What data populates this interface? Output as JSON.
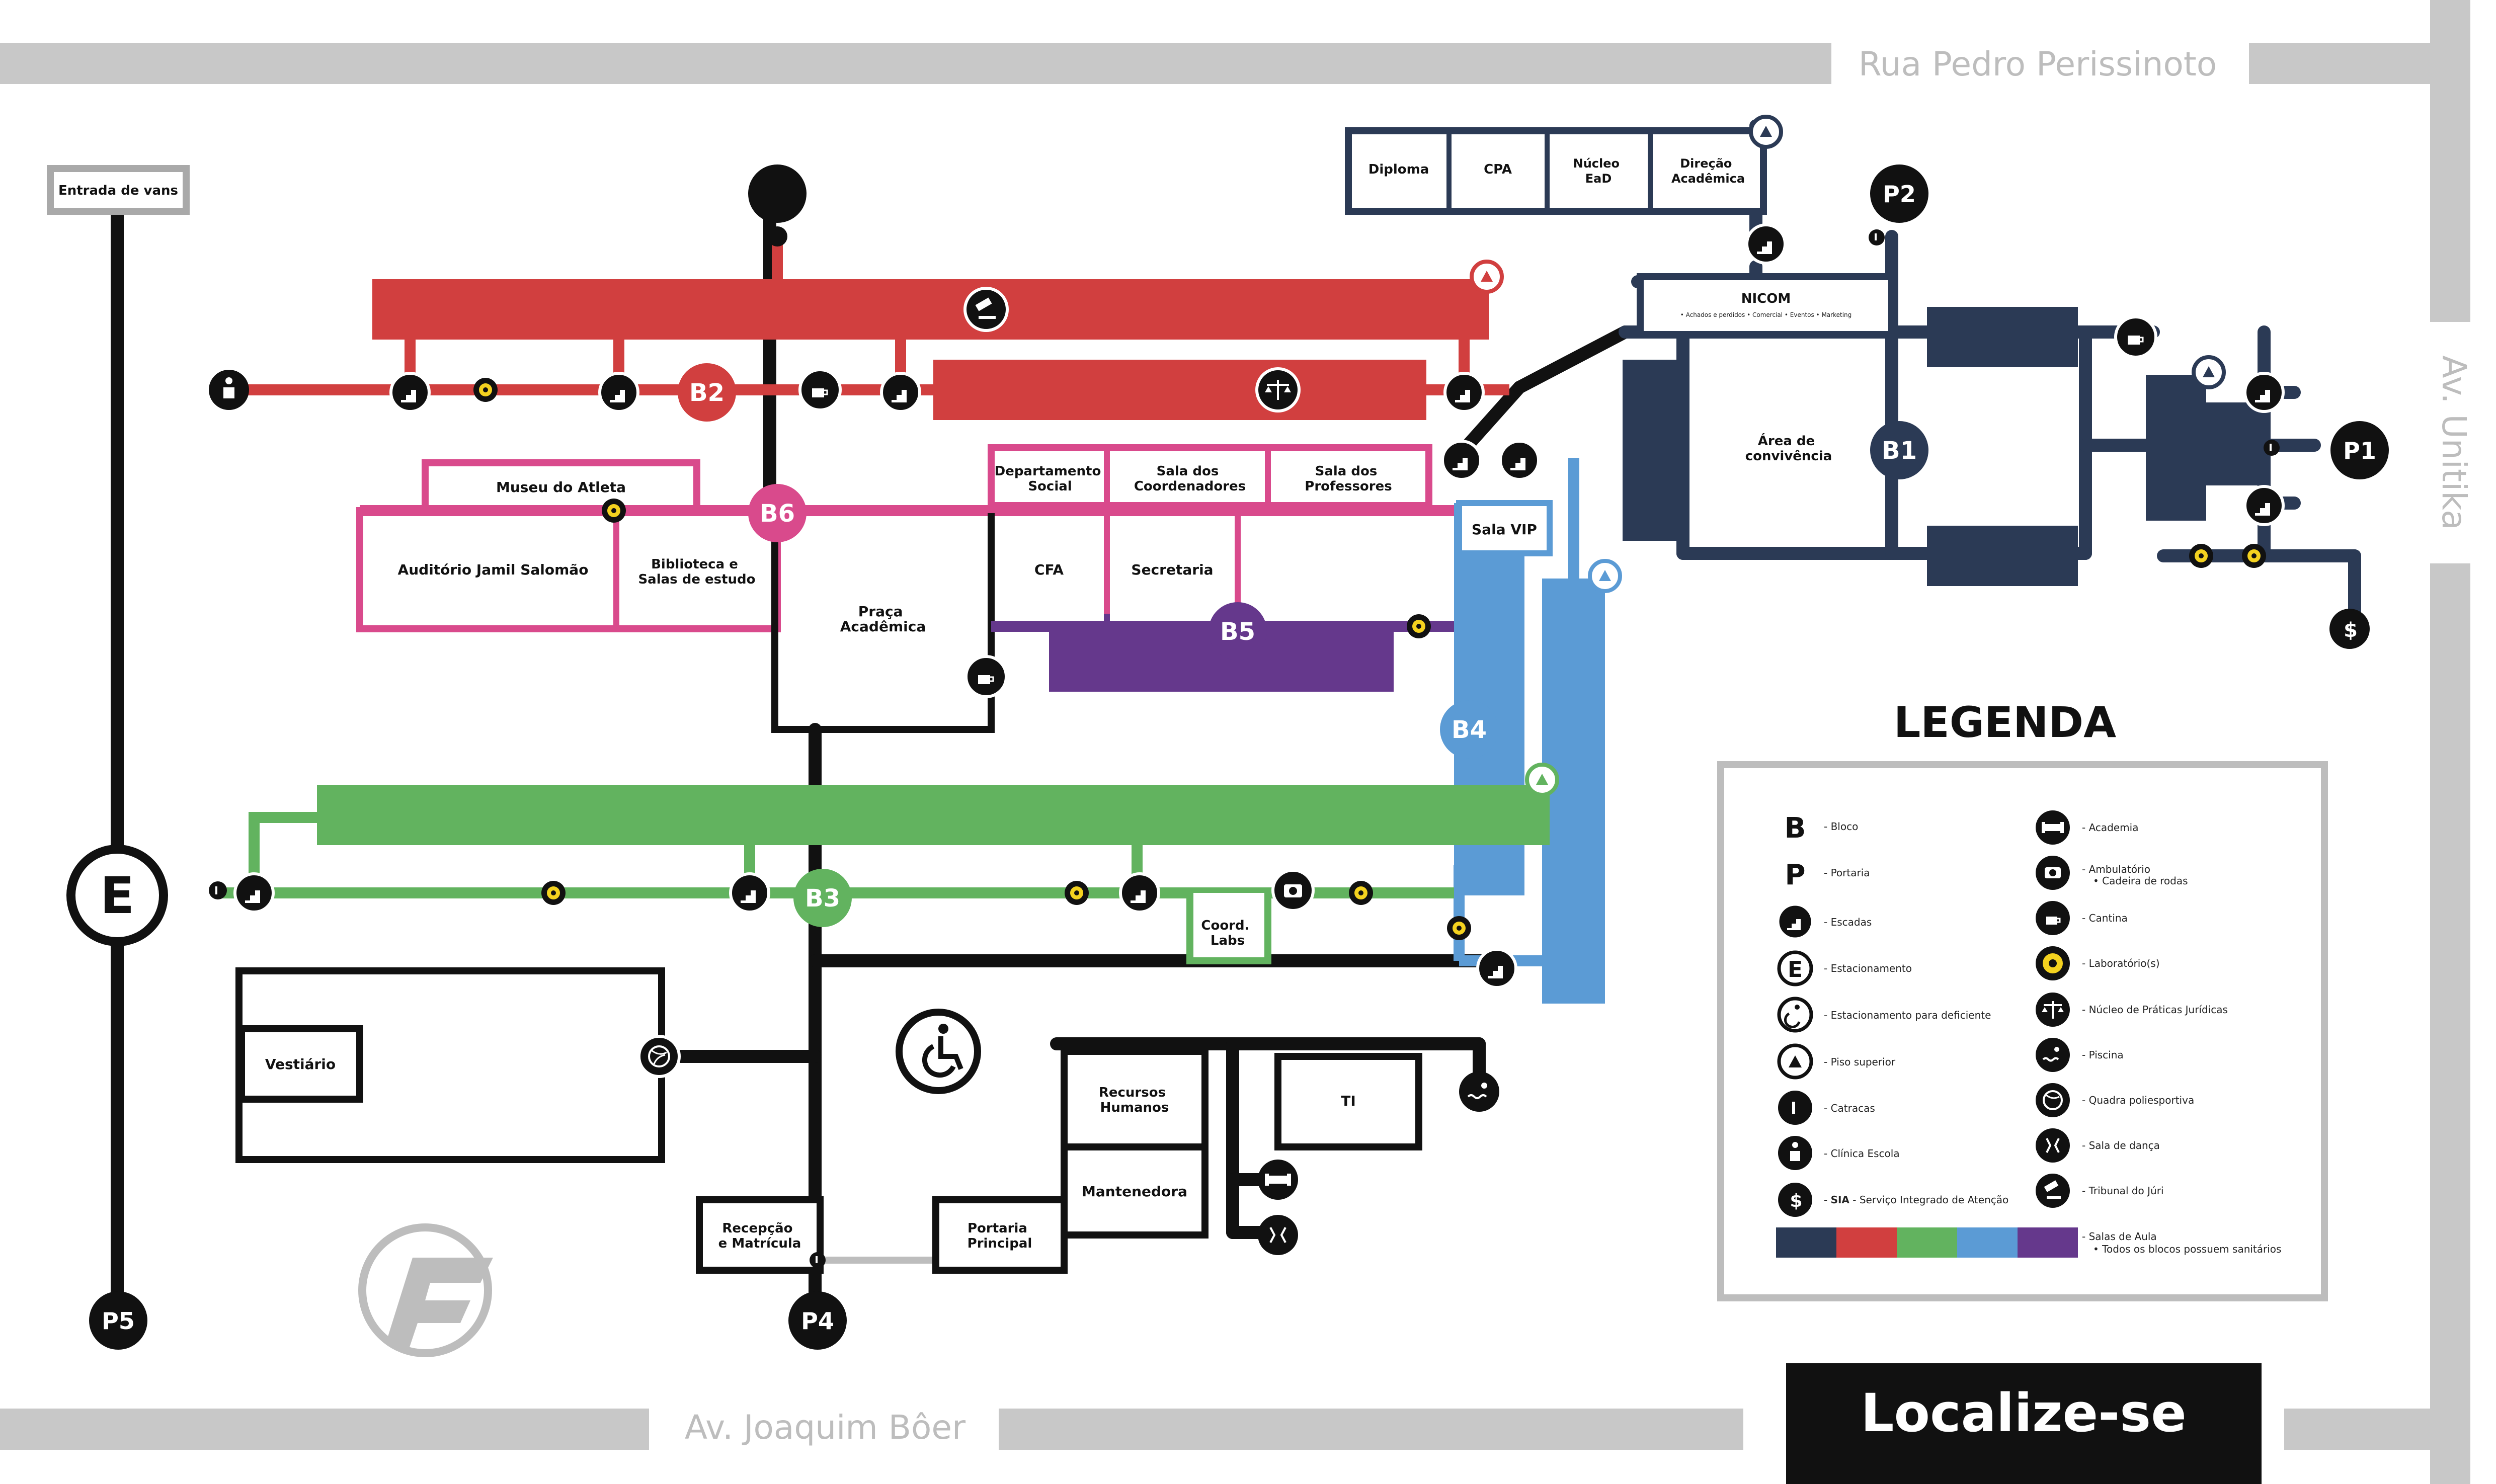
{
  "streets": {
    "top": "Rua Pedro Perissinoto",
    "bottom": "Av. Joaquim Bôer",
    "right": "Av. Unitika"
  },
  "colors": {
    "b1": "#2b3a55",
    "b2": "#d13f3f",
    "b3": "#62b35f",
    "b4": "#5b9bd5",
    "b5": "#65388c",
    "b6": "#d94a8c",
    "line": "#111111",
    "street": "#c8c8c8"
  },
  "entrance": {
    "vans": "Entrada de vans"
  },
  "blocks": {
    "b1": "B1",
    "b2": "B2",
    "b3": "B3",
    "b4": "B4",
    "b5": "B5",
    "b6": "B6"
  },
  "parking": {
    "e": "E",
    "p1": "P1",
    "p2": "P2",
    "p4": "P4",
    "p5": "P5"
  },
  "rooms": {
    "diploma": "Diploma",
    "cpa": "CPA",
    "nucleo_ead": [
      "Núcleo",
      "EaD"
    ],
    "direcao": [
      "Direção",
      "Acadêmica"
    ],
    "nicom": "NICOM",
    "nicom_sub": "• Achados e perdidos • Comercial • Eventos • Marketing",
    "area_convivencia": [
      "Área de",
      "convivência"
    ],
    "museu": "Museu do Atleta",
    "auditorio": "Auditório Jamil Salomão",
    "biblioteca": [
      "Biblioteca e",
      "Salas de estudo"
    ],
    "depto_social": [
      "Departamento",
      "Social"
    ],
    "sala_coord": [
      "Sala dos",
      "Coordenadores"
    ],
    "sala_prof": [
      "Sala dos",
      "Professores"
    ],
    "sala_vip": "Sala VIP",
    "cfa": "CFA",
    "secretaria": "Secretaria",
    "praca": [
      "Praça",
      "Acadêmica"
    ],
    "coord_labs": [
      "Coord.",
      "Labs"
    ],
    "vestiario": "Vestiário",
    "recursos": [
      "Recursos",
      "Humanos"
    ],
    "ti": "TI",
    "mantenedora": "Mantenedora",
    "portaria": [
      "Portaria",
      "Principal"
    ],
    "recepcao": [
      "Recepção",
      "e Matrícula"
    ]
  },
  "legend": {
    "title": "LEGENDA",
    "left": [
      {
        "sym": "B",
        "text": "Bloco"
      },
      {
        "sym": "P",
        "text": "Portaria"
      },
      {
        "icon": "stairs-icon",
        "text": "Escadas"
      },
      {
        "icon": "parking-e-icon",
        "text": "Estacionamento"
      },
      {
        "icon": "accessible-parking-icon",
        "text": "Estacionamento para deficiente"
      },
      {
        "icon": "upper-floor-icon",
        "text": "Piso superior"
      },
      {
        "icon": "turnstile-icon",
        "text": "Catracas"
      },
      {
        "icon": "clinic-icon",
        "text": "Clínica Escola"
      },
      {
        "icon": "sia-icon",
        "bold": "SIA",
        "text": "Serviço Integrado de Atenção"
      }
    ],
    "right": [
      {
        "icon": "dumbbell-icon",
        "text": "Academia"
      },
      {
        "icon": "camera-icon",
        "text": "Ambulatório",
        "sub": "• Cadeira de rodas"
      },
      {
        "icon": "coffee-icon",
        "text": "Cantina"
      },
      {
        "icon": "lab-icon",
        "text": "Laboratório(s)"
      },
      {
        "icon": "scales-icon",
        "text": "Núcleo de Práticas Jurídicas"
      },
      {
        "icon": "pool-icon",
        "text": "Piscina"
      },
      {
        "icon": "volleyball-icon",
        "text": "Quadra poliesportiva"
      },
      {
        "icon": "dance-icon",
        "text": "Sala de dança"
      },
      {
        "icon": "gavel-icon",
        "text": "Tribunal do Júri"
      }
    ],
    "classrooms": "Salas de Aula",
    "classrooms_sub": "• Todos os blocos possuem sanitários",
    "swatches": [
      "#2b3a55",
      "#d13f3f",
      "#62b35f",
      "#5b9bd5",
      "#65388c"
    ]
  },
  "localize": "Localize-se"
}
